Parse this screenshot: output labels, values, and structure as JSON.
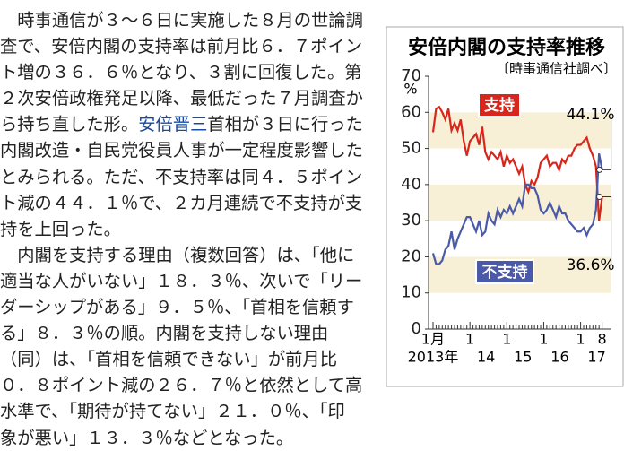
{
  "article": {
    "lines": [
      "　時事通信が３～６日に実施した８月の世論調",
      "査で、安倍内閣の支持率は前月比６．７ポイン",
      "ト増の３６．６％となり、３割に回復した。第",
      "２次安倍政権発足以降、最低だった７月調査か",
      {
        "before": "ら持ち直した形。",
        "link": "安倍晋三",
        "after": "首相が３日に行った"
      },
      "内閣改造・自民党役員人事が一定程度影響した",
      "とみられる。ただ、不支持率は同４．５ポイン",
      "ト減の４４．１％で、２カ月連続で不支持が支",
      "持を上回った。",
      "　内閣を支持する理由（複数回答）は、「他に",
      "適当な人がいない」１８．３％、次いで「リー",
      "ダーシップがある」９．５％、「首相を信頼す",
      "る」８．３％の順。内閣を支持しない理由",
      "（同）は、「首相を信頼できない」が前月比",
      "０．８ポイント減の２６．７％と依然として高",
      "水準で、「期待が持てない」２１．０％、「印",
      "象が悪い」１３．３％などとなった。"
    ]
  },
  "chart_data": {
    "type": "line",
    "title": "安倍内閣の支持率推移",
    "subtitle": "〔時事通信社調べ〕",
    "y_unit": "%",
    "categories": [
      "1月",
      null,
      null,
      null,
      null,
      null,
      null,
      null,
      null,
      null,
      null,
      null,
      "1",
      null,
      null,
      null,
      null,
      null,
      null,
      null,
      null,
      null,
      null,
      null,
      "1",
      null,
      null,
      null,
      null,
      null,
      null,
      null,
      null,
      null,
      null,
      null,
      "1",
      null,
      null,
      null,
      null,
      null,
      null,
      null,
      null,
      null,
      null,
      null,
      "1",
      null,
      null,
      null,
      null,
      null,
      null,
      "8"
    ],
    "year_labels": [
      "2013年",
      null,
      null,
      null,
      null,
      null,
      null,
      null,
      null,
      null,
      null,
      null,
      "14",
      null,
      null,
      null,
      null,
      null,
      null,
      null,
      null,
      null,
      null,
      null,
      "15",
      null,
      null,
      null,
      null,
      null,
      null,
      null,
      null,
      null,
      null,
      null,
      "16",
      null,
      null,
      null,
      null,
      null,
      null,
      null,
      null,
      null,
      null,
      null,
      "17",
      null,
      null,
      null,
      null,
      null,
      null,
      null
    ],
    "series": [
      {
        "name": "支持",
        "color": "#d7261c",
        "values": [
          54.5,
          61,
          61.5,
          60,
          58,
          61,
          55,
          57,
          55,
          58,
          52,
          48,
          52,
          53,
          54,
          51,
          56,
          49,
          47,
          49,
          48,
          47,
          49,
          45,
          48,
          46,
          47,
          45,
          43,
          45,
          40,
          38,
          41,
          40,
          42,
          46,
          47,
          48,
          45,
          46,
          46,
          44,
          47,
          46,
          48,
          48,
          50,
          51,
          51,
          52,
          53,
          50,
          48,
          45,
          29.9,
          36.6
        ],
        "end_label": "36.6%"
      },
      {
        "name": "不支持",
        "color": "#4a5aa8",
        "values": [
          21,
          18,
          18,
          19,
          22,
          23,
          27,
          22,
          25,
          27,
          29,
          31,
          31,
          29,
          27,
          30,
          26,
          27,
          32,
          30,
          29,
          33,
          31,
          33,
          32,
          34,
          32,
          34,
          36,
          34,
          40,
          40,
          39,
          39,
          37,
          33,
          32,
          33,
          35,
          33,
          31,
          34,
          32,
          32,
          30,
          29,
          28,
          27,
          27,
          28,
          26,
          28,
          29,
          33,
          48.6,
          44.1
        ],
        "end_label": "44.1%"
      }
    ],
    "ylim": [
      0,
      70
    ],
    "yticks": [
      0,
      10,
      20,
      30,
      40,
      50,
      60,
      70
    ]
  }
}
